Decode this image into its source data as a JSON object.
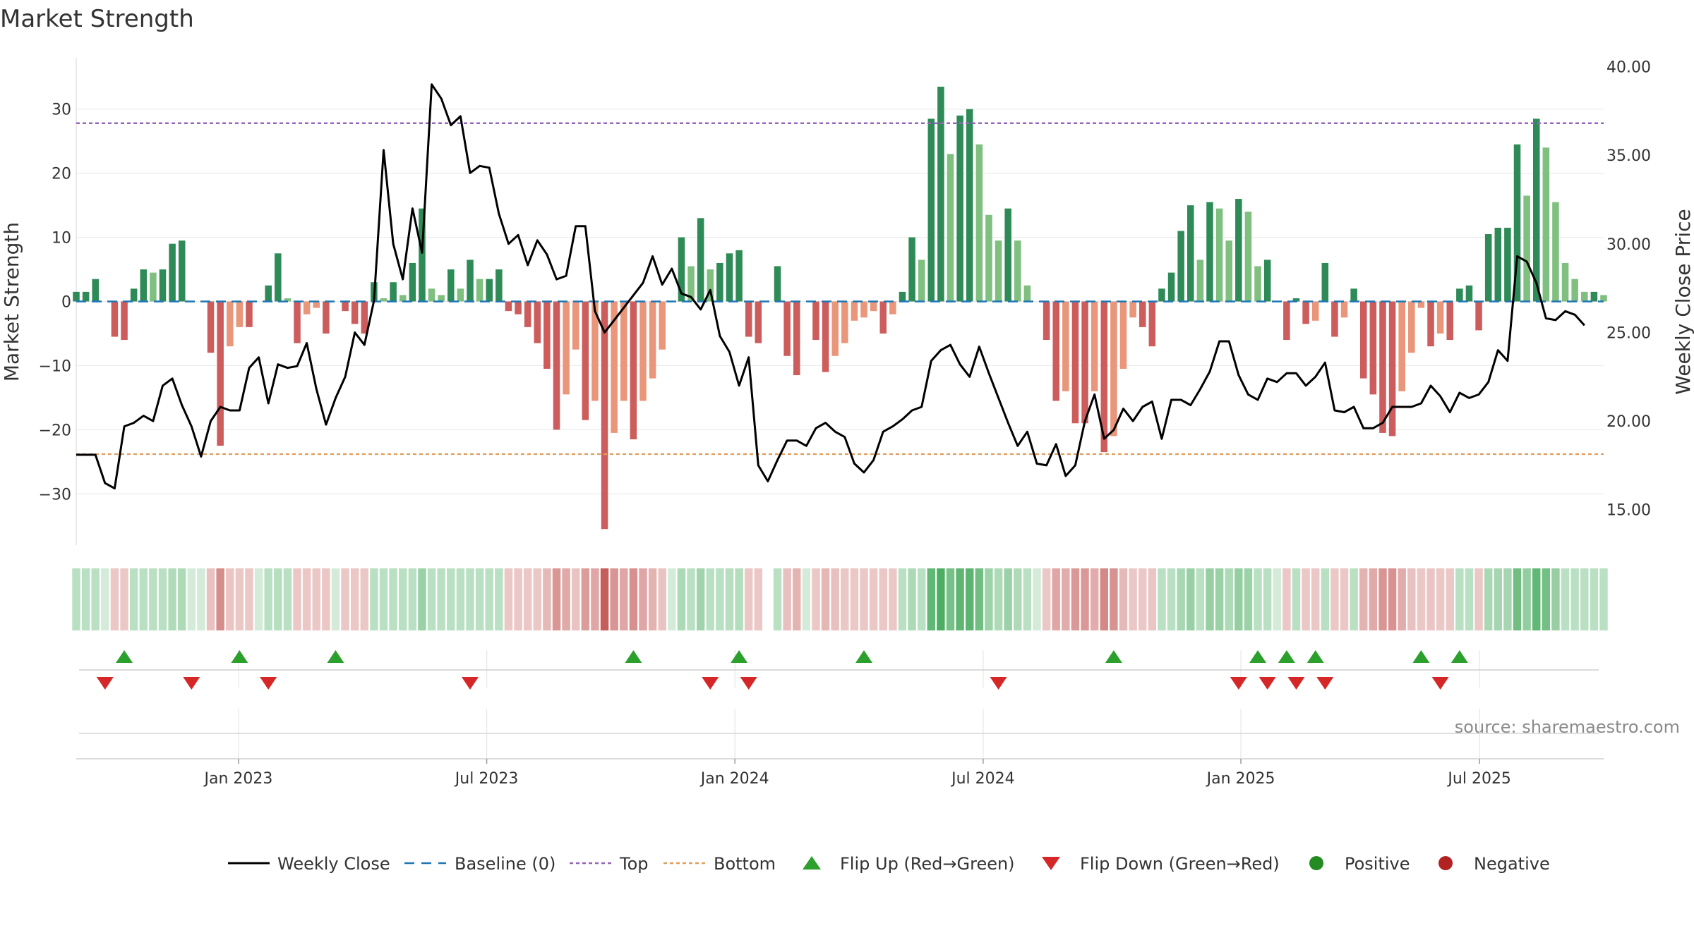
{
  "chart_data": {
    "type": "bar",
    "title": "Market Strength",
    "ylabel": "Market Strength",
    "y2label": "Weekly Close Price",
    "ylim": [
      -38,
      38
    ],
    "y2lim": [
      13.0,
      40.5
    ],
    "yticks": [
      30,
      20,
      10,
      0,
      -10,
      -20,
      -30
    ],
    "yticks_text": [
      "30",
      "20",
      "10",
      "0",
      "−10",
      "−20",
      "−30"
    ],
    "y2ticks": [
      40,
      35,
      30,
      25,
      20,
      15
    ],
    "y2ticks_text": [
      "40.00",
      "35.00",
      "30.00",
      "25.00",
      "20.00",
      "15.00"
    ],
    "start_date": "2022-09-05",
    "end_date": "2025-09-29",
    "xticks": [
      {
        "label": "Jan 2023",
        "date": "2023-01-02"
      },
      {
        "label": "Jul 2023",
        "date": "2023-07-03"
      },
      {
        "label": "Jan 2024",
        "date": "2024-01-01"
      },
      {
        "label": "Jul 2024",
        "date": "2024-07-01"
      },
      {
        "label": "Jan 2025",
        "date": "2025-01-06"
      },
      {
        "label": "Jul 2025",
        "date": "2025-06-30"
      }
    ],
    "top_line": 27.8,
    "bottom_line": -23.8,
    "grid": true,
    "legend_position": "bottom",
    "source": "source: sharemaestro.com",
    "colors": {
      "strong_green": "#2e8b57",
      "light_green": "#7fbf7f",
      "strong_red": "#cd5c5c",
      "light_red": "#e9967a",
      "price_line": "#000000",
      "baseline": "#1f77b4",
      "top": "#9467bd",
      "bottom": "#e0a060",
      "flip_up": "#2ca02c",
      "flip_down": "#d62728",
      "positive": "#228b22",
      "negative": "#b22222"
    },
    "strength": [
      1.5,
      1.5,
      3.5,
      0,
      -5.5,
      -6,
      2,
      5,
      4.5,
      5,
      9,
      9.5,
      0,
      0,
      -8,
      -22.5,
      -7,
      -4,
      -4,
      0,
      2.5,
      7.5,
      0.5,
      -6.5,
      -2,
      -1,
      -5,
      0,
      -1.5,
      -3.5,
      -5,
      3,
      0.5,
      3,
      1,
      6,
      14.5,
      2,
      1,
      5,
      2,
      6.5,
      3.5,
      3.5,
      5,
      -1.5,
      -2,
      -4,
      -6.5,
      -10.5,
      -20,
      -14.5,
      -7.5,
      -18.5,
      -15.5,
      -35.5,
      -20.5,
      -15.5,
      -21.5,
      -15.5,
      -12,
      -7.5,
      0,
      10,
      5.5,
      13,
      5,
      6,
      7.5,
      8,
      -5.5,
      -6.5,
      0,
      5.5,
      -8.5,
      -11.5,
      0,
      -6,
      -11,
      -8.5,
      -6.5,
      -3,
      -2.5,
      -1.5,
      -5,
      -2,
      1.5,
      10,
      6.5,
      28.5,
      33.5,
      23,
      29,
      30,
      24.5,
      13.5,
      9.5,
      14.5,
      9.5,
      2.5,
      0,
      -6,
      -15.5,
      -14,
      -19,
      -19,
      -14,
      -23.5,
      -21,
      -10.5,
      -2.5,
      -4,
      -7,
      2,
      4.5,
      11,
      15,
      6.5,
      15.5,
      14.5,
      9.5,
      16,
      14,
      5.5,
      6.5,
      0,
      -6,
      0.5,
      -3.5,
      -3,
      6,
      -5.5,
      -2.5,
      2,
      -12,
      -14.5,
      -20.5,
      -21,
      -14,
      -8,
      -1,
      -7,
      -5,
      -6,
      2,
      2.5,
      -4.5,
      10.5,
      11.5,
      11.5,
      24.5,
      16.5,
      28.5,
      24,
      15.5,
      6,
      3.5,
      1.5,
      1.5,
      1
    ],
    "price": [
      18.1,
      18.1,
      18.1,
      16.5,
      16.2,
      19.7,
      19.9,
      20.3,
      20.0,
      22.0,
      22.4,
      20.9,
      19.7,
      18.0,
      20.0,
      20.8,
      20.6,
      20.6,
      23.0,
      23.6,
      21.0,
      23.2,
      23.0,
      23.1,
      24.4,
      21.8,
      19.8,
      21.3,
      22.5,
      25.0,
      24.3,
      26.8,
      35.3,
      30.0,
      28.0,
      32.0,
      29.5,
      39.0,
      38.2,
      36.7,
      37.2,
      34.0,
      34.4,
      34.3,
      31.7,
      30.0,
      30.5,
      28.8,
      30.2,
      29.4,
      28.0,
      28.2,
      31.0,
      31.0,
      26.2,
      25.0,
      25.7,
      26.4,
      27.1,
      27.8,
      29.3,
      27.7,
      28.6,
      27.2,
      27.0,
      26.3,
      27.4,
      24.8,
      23.9,
      22.0,
      23.6,
      17.5,
      16.6,
      17.8,
      18.9,
      18.9,
      18.6,
      19.6,
      19.9,
      19.4,
      19.1,
      17.6,
      17.1,
      17.8,
      19.4,
      19.7,
      20.1,
      20.6,
      20.8,
      23.4,
      24.0,
      24.3,
      23.2,
      22.5,
      24.2,
      22.7,
      21.3,
      19.9,
      18.6,
      19.4,
      17.6,
      17.5,
      18.7,
      16.9,
      17.5,
      20.0,
      21.5,
      19.0,
      19.5,
      20.7,
      20.0,
      20.8,
      21.1,
      19.0,
      21.2,
      21.2,
      20.9,
      21.8,
      22.8,
      24.5,
      24.5,
      22.6,
      21.5,
      21.2,
      22.4,
      22.2,
      22.7,
      22.7,
      22.0,
      22.5,
      23.3,
      20.6,
      20.5,
      20.8,
      19.6,
      19.6,
      19.9,
      20.8,
      20.8,
      20.8,
      21.0,
      22.0,
      21.4,
      20.5,
      21.6,
      21.3,
      21.5,
      22.2,
      24.0,
      23.4,
      29.3,
      29.0,
      27.8,
      25.8,
      25.7,
      26.2,
      26.0,
      25.4
    ],
    "heat_gap_weeks": [
      72
    ],
    "flip_up_weeks": [
      5,
      17,
      27,
      58,
      69,
      82,
      108,
      123,
      126,
      129,
      140,
      144
    ],
    "flip_down_weeks": [
      3,
      12,
      20,
      41,
      66,
      70,
      96,
      121,
      124,
      127,
      130,
      142
    ],
    "legend": [
      {
        "key": "line",
        "label": "Weekly Close"
      },
      {
        "key": "baseline",
        "label": "Baseline (0)"
      },
      {
        "key": "top",
        "label": "Top"
      },
      {
        "key": "bottom",
        "label": "Bottom"
      },
      {
        "key": "flip_up",
        "label": "Flip Up (Red→Green)"
      },
      {
        "key": "flip_down",
        "label": "Flip Down (Green→Red)"
      },
      {
        "key": "positive",
        "label": "Positive"
      },
      {
        "key": "negative",
        "label": "Negative"
      }
    ]
  }
}
